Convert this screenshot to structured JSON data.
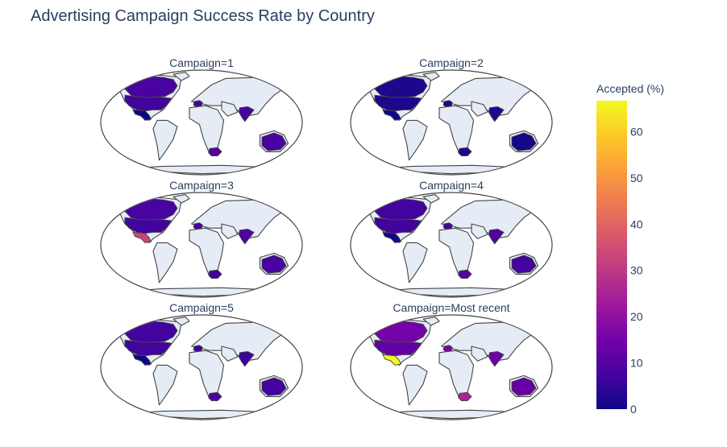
{
  "chart_data": {
    "type": "choropleth",
    "title": "Advertising Campaign Success Rate by Country",
    "colorbar": {
      "title": "Accepted (%)",
      "range": [
        0,
        66.7
      ],
      "ticks": [
        0,
        10,
        20,
        30,
        40,
        50,
        60
      ],
      "colorscale": [
        "#0d0887",
        "#46039f",
        "#7201a8",
        "#9c179e",
        "#bd3786",
        "#d8576b",
        "#ed7953",
        "#fb9f3a",
        "#fdca26",
        "#f0f921"
      ]
    },
    "countries": [
      "USA",
      "Canada",
      "Mexico",
      "Spain",
      "India",
      "South Africa",
      "Australia"
    ],
    "facets": [
      {
        "label": "Campaign=1",
        "values": {
          "USA": 7,
          "Canada": 8,
          "Mexico": 0,
          "Spain": 7,
          "India": 8,
          "South Africa": 10,
          "Australia": 8
        }
      },
      {
        "label": "Campaign=2",
        "values": {
          "USA": 2,
          "Canada": 2,
          "Mexico": 0,
          "Spain": 2,
          "India": 3,
          "South Africa": 2,
          "Australia": 1
        }
      },
      {
        "label": "Campaign=3",
        "values": {
          "USA": 7,
          "Canada": 8,
          "Mexico": 33,
          "Spain": 7,
          "India": 9,
          "South Africa": 7,
          "Australia": 8
        }
      },
      {
        "label": "Campaign=4",
        "values": {
          "USA": 7,
          "Canada": 7,
          "Mexico": 0,
          "Spain": 7,
          "India": 9,
          "South Africa": 9,
          "Australia": 7
        }
      },
      {
        "label": "Campaign=5",
        "values": {
          "USA": 7,
          "Canada": 7,
          "Mexico": 0,
          "Spain": 7,
          "India": 6,
          "South Africa": 8,
          "Australia": 7
        }
      },
      {
        "label": "Campaign=Most recent",
        "values": {
          "USA": 12,
          "Canada": 15,
          "Mexico": 66.7,
          "Spain": 16,
          "India": 14,
          "South Africa": 25,
          "Australia": 13
        }
      }
    ]
  }
}
